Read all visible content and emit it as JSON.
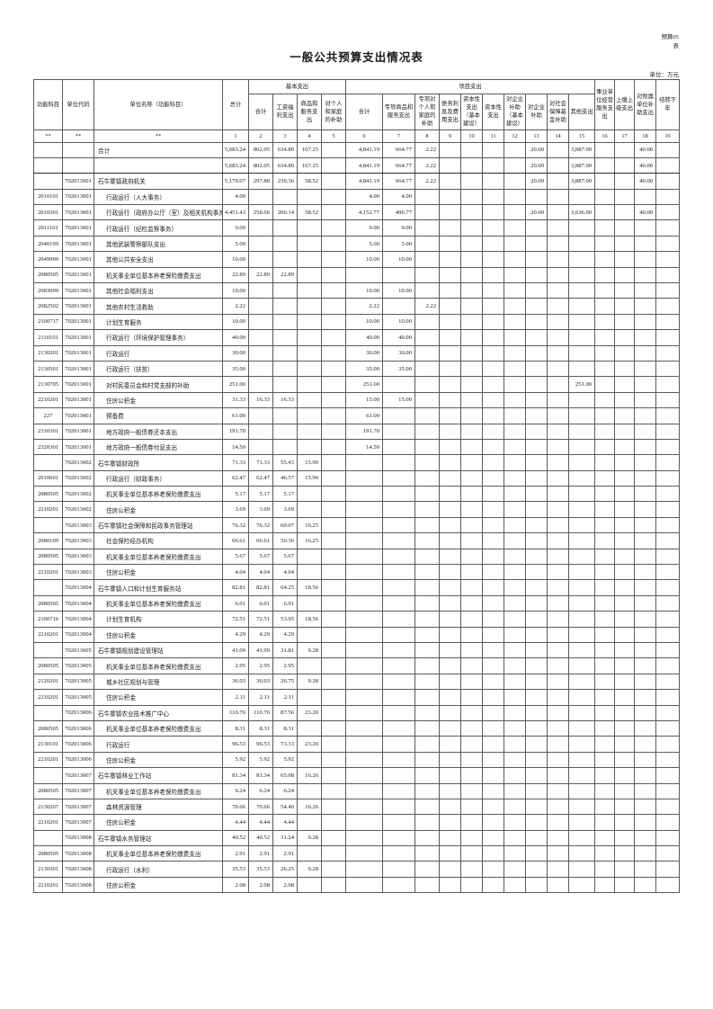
{
  "meta": {
    "form_no_line1": "预算05",
    "form_no_line2": "表",
    "title": "一般公共预算支出情况表",
    "unit_note": "单位：万元"
  },
  "header": {
    "func": "功能科目",
    "unit_code": "单位代码",
    "unit_name": "单位名称（功能科目）",
    "total": "总计",
    "basic_group": "基本支出",
    "basic_cols": [
      "合计",
      "工资福利支出",
      "商品和服务支出",
      "对个人和家庭的补助"
    ],
    "project_group": "项目支出",
    "project_cols": [
      "合计",
      "专项商品和服务支出",
      "专项对个人和家庭的补助",
      "债务利息及费用支出",
      "资本性支出（基本建设）",
      "资本性支出",
      "对企业补助（基本建设）",
      "对企业补助",
      "对社会保障基金补助",
      "其他支出"
    ],
    "tail_cols": [
      "事业单位经营服务支出",
      "上缴上级支出",
      "对附属单位补助支出",
      "结转下年"
    ],
    "seq": [
      "**",
      "**",
      "**",
      "1",
      "2",
      "3",
      "4",
      "5",
      "6",
      "7",
      "8",
      "9",
      "10",
      "11",
      "12",
      "13",
      "14",
      "15",
      "16",
      "17",
      "18",
      "19"
    ]
  },
  "rows": [
    {
      "f": "",
      "u": "",
      "n": "合计",
      "i": 0,
      "c": {
        "1": "5,683.24",
        "2": "802.05",
        "3": "634.80",
        "4": "167.25",
        "6": "4,841.19",
        "7": "664.77",
        "8": "2.22",
        "13": "20.00",
        "15": "3,887.00",
        "18": "40.00"
      }
    },
    {
      "f": "",
      "u": "",
      "n": "",
      "i": 0,
      "c": {
        "1": "5,683.24",
        "2": "802.05",
        "3": "634.80",
        "4": "167.25",
        "6": "4,841.19",
        "7": "664.77",
        "8": "2.22",
        "13": "20.00",
        "15": "3,887.00",
        "18": "40.00"
      }
    },
    {
      "f": "",
      "u": "702013001",
      "n": "石牛寨镇政府机关",
      "i": 0,
      "c": {
        "1": "5,179.07",
        "2": "297.88",
        "3": "239.36",
        "4": "58.52",
        "6": "4,841.19",
        "7": "664.77",
        "8": "2.22",
        "13": "20.00",
        "15": "3,887.00",
        "18": "40.00"
      }
    },
    {
      "f": "2010101",
      "u": "702013001",
      "n": "行政运行（人大事务）",
      "i": 1,
      "c": {
        "1": "4.00",
        "6": "4.00",
        "7": "4.00"
      }
    },
    {
      "f": "2010301",
      "u": "702013001",
      "n": "行政运行（政府办公厅（室）及相关机构事务）",
      "i": 1,
      "c": {
        "1": "4,451.43",
        "2": "258.66",
        "3": "200.14",
        "4": "58.52",
        "6": "4,152.77",
        "7": "496.77",
        "13": "20.00",
        "15": "3,636.00",
        "18": "40.00"
      }
    },
    {
      "f": "2011101",
      "u": "702013001",
      "n": "行政运行（纪检监察事务）",
      "i": 1,
      "c": {
        "1": "9.00",
        "6": "9.00",
        "7": "9.00"
      }
    },
    {
      "f": "2040199",
      "u": "702013001",
      "n": "其他武装警察部队支出",
      "i": 1,
      "c": {
        "1": "5.00",
        "6": "5.00",
        "7": "5.00"
      }
    },
    {
      "f": "2049999",
      "u": "702013001",
      "n": "其他公共安全支出",
      "i": 1,
      "c": {
        "1": "10.00",
        "6": "10.00",
        "7": "10.00"
      }
    },
    {
      "f": "2080505",
      "u": "702013001",
      "n": "机关事业单位基本养老保险缴费支出",
      "i": 1,
      "c": {
        "1": "22.89",
        "2": "22.89",
        "3": "22.89"
      }
    },
    {
      "f": "2083099",
      "u": "702013001",
      "n": "其他社会福利支出",
      "i": 1,
      "c": {
        "1": "10.00",
        "6": "10.00",
        "7": "10.00"
      }
    },
    {
      "f": "2082502",
      "u": "702013001",
      "n": "其他农村生活救助",
      "i": 1,
      "c": {
        "1": "2.22",
        "6": "2.22",
        "8": "2.22"
      }
    },
    {
      "f": "2100717",
      "u": "702013001",
      "n": "计划生育服务",
      "i": 1,
      "c": {
        "1": "10.00",
        "6": "10.00",
        "7": "10.00"
      }
    },
    {
      "f": "2110101",
      "u": "702013001",
      "n": "行政运行（环境保护管理事务）",
      "i": 1,
      "c": {
        "1": "40.00",
        "6": "40.00",
        "7": "40.00"
      }
    },
    {
      "f": "2130201",
      "u": "702013001",
      "n": "行政运行",
      "i": 1,
      "c": {
        "1": "30.00",
        "6": "30.00",
        "7": "30.00"
      }
    },
    {
      "f": "2130501",
      "u": "702013001",
      "n": "行政运行（扶贫）",
      "i": 1,
      "c": {
        "1": "35.00",
        "6": "35.00",
        "7": "35.00"
      }
    },
    {
      "f": "2130705",
      "u": "702013001",
      "n": "对村民委员会和村党支部的补助",
      "i": 1,
      "c": {
        "1": "251.00",
        "6": "251.00",
        "15": "251.00"
      }
    },
    {
      "f": "2210201",
      "u": "702013001",
      "n": "住房公积金",
      "i": 1,
      "c": {
        "1": "31.33",
        "2": "16.33",
        "3": "16.33",
        "6": "15.00",
        "7": "15.00"
      }
    },
    {
      "f": "227",
      "u": "702013001",
      "n": "预备费",
      "i": 1,
      "c": {
        "1": "61.00",
        "6": "61.00"
      }
    },
    {
      "f": "2310301",
      "u": "702013001",
      "n": "地方政府一般债券还本支出",
      "i": 1,
      "c": {
        "1": "191.70",
        "6": "191.70"
      }
    },
    {
      "f": "2320301",
      "u": "702013001",
      "n": "地方政府一般债券付息支出",
      "i": 1,
      "c": {
        "1": "14.50",
        "6": "14.50"
      }
    },
    {
      "f": "",
      "u": "702013002",
      "n": "石牛寨镇财政所",
      "i": 0,
      "c": {
        "1": "71.33",
        "2": "71.33",
        "3": "55.43",
        "4": "15.90"
      }
    },
    {
      "f": "2010601",
      "u": "702013002",
      "n": "行政运行（财政事务）",
      "i": 1,
      "c": {
        "1": "62.47",
        "2": "62.47",
        "3": "46.57",
        "4": "15.90"
      }
    },
    {
      "f": "2080505",
      "u": "702013002",
      "n": "机关事业单位基本养老保险缴费支出",
      "i": 1,
      "c": {
        "1": "5.17",
        "2": "5.17",
        "3": "5.17"
      }
    },
    {
      "f": "2210201",
      "u": "702013002",
      "n": "住房公积金",
      "i": 1,
      "c": {
        "1": "3.69",
        "2": "3.69",
        "3": "3.69"
      }
    },
    {
      "f": "",
      "u": "702013003",
      "n": "石牛寨镇社会保障和民政事务管理站",
      "i": 0,
      "c": {
        "1": "76.32",
        "2": "76.32",
        "3": "60.07",
        "4": "16.25"
      }
    },
    {
      "f": "2080109",
      "u": "702013003",
      "n": "社会保险经办机构",
      "i": 1,
      "c": {
        "1": "66.61",
        "2": "66.61",
        "3": "50.36",
        "4": "16.25"
      }
    },
    {
      "f": "2080505",
      "u": "702013003",
      "n": "机关事业单位基本养老保险缴费支出",
      "i": 1,
      "c": {
        "1": "5.67",
        "2": "5.67",
        "3": "5.67"
      }
    },
    {
      "f": "2210201",
      "u": "702013003",
      "n": "住房公积金",
      "i": 1,
      "c": {
        "1": "4.04",
        "2": "4.04",
        "3": "4.04"
      }
    },
    {
      "f": "",
      "u": "702013004",
      "n": "石牛寨镇人口和计划生育服务站",
      "i": 0,
      "c": {
        "1": "82.81",
        "2": "82.81",
        "3": "64.25",
        "4": "18.56"
      }
    },
    {
      "f": "2080505",
      "u": "702013004",
      "n": "机关事业单位基本养老保险缴费支出",
      "i": 1,
      "c": {
        "1": "6.01",
        "2": "6.01",
        "3": "6.01"
      }
    },
    {
      "f": "2100716",
      "u": "702013004",
      "n": "计划生育机构",
      "i": 1,
      "c": {
        "1": "72.51",
        "2": "72.51",
        "3": "53.95",
        "4": "18.56"
      }
    },
    {
      "f": "2210201",
      "u": "702013004",
      "n": "住房公积金",
      "i": 1,
      "c": {
        "1": "4.29",
        "2": "4.29",
        "3": "4.29"
      }
    },
    {
      "f": "",
      "u": "702013005",
      "n": "石牛寨镇规划建设管理站",
      "i": 0,
      "c": {
        "1": "41.09",
        "2": "41.09",
        "3": "31.81",
        "4": "9.28"
      }
    },
    {
      "f": "2080505",
      "u": "702013005",
      "n": "机关事业单位基本养老保险缴费支出",
      "i": 1,
      "c": {
        "1": "2.95",
        "2": "2.95",
        "3": "2.95"
      }
    },
    {
      "f": "2120201",
      "u": "702013005",
      "n": "城乡社区规划与管理",
      "i": 1,
      "c": {
        "1": "36.03",
        "2": "36.03",
        "3": "26.75",
        "4": "9.28"
      }
    },
    {
      "f": "2210201",
      "u": "702013005",
      "n": "住房公积金",
      "i": 1,
      "c": {
        "1": "2.11",
        "2": "2.11",
        "3": "2.11"
      }
    },
    {
      "f": "",
      "u": "702013006",
      "n": "石牛寨镇农业技术推广中心",
      "i": 0,
      "c": {
        "1": "110.76",
        "2": "110.76",
        "3": "87.56",
        "4": "23.20"
      }
    },
    {
      "f": "2080505",
      "u": "702013006",
      "n": "机关事业单位基本养老保险缴费支出",
      "i": 1,
      "c": {
        "1": "8.31",
        "2": "8.31",
        "3": "8.31"
      }
    },
    {
      "f": "2130101",
      "u": "702013006",
      "n": "行政运行",
      "i": 1,
      "c": {
        "1": "96.53",
        "2": "96.53",
        "3": "73.33",
        "4": "23.20"
      }
    },
    {
      "f": "2210201",
      "u": "702013006",
      "n": "住房公积金",
      "i": 1,
      "c": {
        "1": "5.92",
        "2": "5.92",
        "3": "5.92"
      }
    },
    {
      "f": "",
      "u": "702013007",
      "n": "石牛寨镇林业工作站",
      "i": 0,
      "c": {
        "1": "81.34",
        "2": "81.34",
        "3": "65.08",
        "4": "16.26"
      }
    },
    {
      "f": "2080505",
      "u": "702013007",
      "n": "机关事业单位基本养老保险缴费支出",
      "i": 1,
      "c": {
        "1": "6.24",
        "2": "6.24",
        "3": "6.24"
      }
    },
    {
      "f": "2130207",
      "u": "702013007",
      "n": "森林资源管理",
      "i": 1,
      "c": {
        "1": "70.66",
        "2": "70.66",
        "3": "54.40",
        "4": "16.26"
      }
    },
    {
      "f": "2210201",
      "u": "702013007",
      "n": "住房公积金",
      "i": 1,
      "c": {
        "1": "4.44",
        "2": "4.44",
        "3": "4.44"
      }
    },
    {
      "f": "",
      "u": "702013008",
      "n": "石牛寨镇水务管理站",
      "i": 0,
      "c": {
        "1": "40.52",
        "2": "40.52",
        "3": "31.24",
        "4": "9.28"
      }
    },
    {
      "f": "2080505",
      "u": "702013008",
      "n": "机关事业单位基本养老保险缴费支出",
      "i": 1,
      "c": {
        "1": "2.91",
        "2": "2.91",
        "3": "2.91"
      }
    },
    {
      "f": "2130301",
      "u": "702013008",
      "n": "行政运行（水利）",
      "i": 1,
      "c": {
        "1": "35.53",
        "2": "35.53",
        "3": "26.25",
        "4": "9.28"
      }
    },
    {
      "f": "2210201",
      "u": "702013008",
      "n": "住房公积金",
      "i": 1,
      "c": {
        "1": "2.08",
        "2": "2.08",
        "3": "2.08"
      }
    }
  ]
}
